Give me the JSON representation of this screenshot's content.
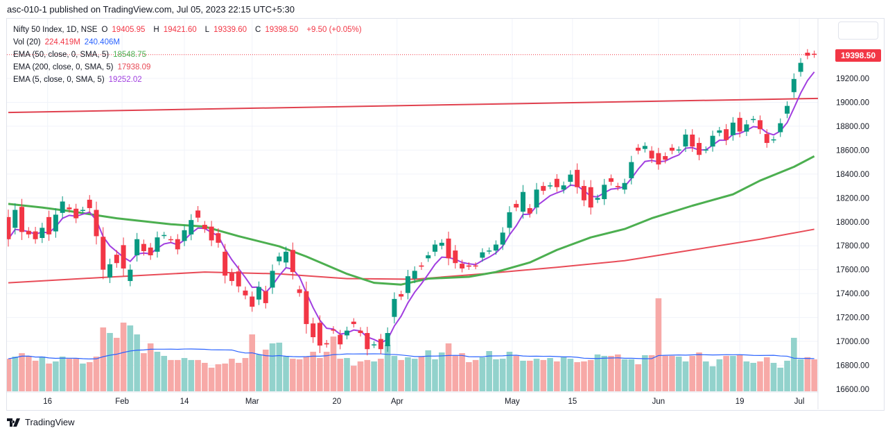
{
  "header": {
    "published": "asc-010-1 published on TradingView.com, Jul 05, 2023 22:15 UTC+5:30"
  },
  "legend": {
    "symbol": "Nifty 50 Index, 1D, NSE",
    "open_label": "O",
    "open": "19405.95",
    "high_label": "H",
    "high": "19421.60",
    "low_label": "L",
    "low": "19339.60",
    "close_label": "C",
    "close": "19398.50",
    "change": "+9.50 (+0.05%)",
    "vol_label": "Vol (20)",
    "vol_value": "224.419M",
    "vol_ma": "240.406M",
    "ema50_label": "EMA (50, close, 0, SMA, 5)",
    "ema50_value": "18548.75",
    "ema200_label": "EMA (200, close, 0, SMA, 5)",
    "ema200_value": "17938.09",
    "ema5_label": "EMA (5, close, 0, SMA, 5)",
    "ema5_value": "19252.02"
  },
  "last_price_tag": "19398.50",
  "brand": "TradingView",
  "colors": {
    "up": "#089981",
    "down": "#f23645",
    "vol_up": "#92d2cc",
    "vol_down": "#f7a9a7",
    "ema50": "#4caf50",
    "ema200": "#e84b57",
    "ema5": "#a13ee0",
    "vol_ma": "#2962ff",
    "trend": "#e0404e"
  },
  "chart_data": {
    "type": "candlestick",
    "title": "Nifty 50 Index, 1D, NSE",
    "ylim": [
      16600,
      19500
    ],
    "y_ticks": [
      "19200.00",
      "19000.00",
      "18800.00",
      "18600.00",
      "18400.00",
      "18200.00",
      "18000.00",
      "17800.00",
      "17600.00",
      "17400.00",
      "17200.00",
      "17000.00",
      "16800.00",
      "16600.00"
    ],
    "x_ticks": [
      {
        "label": "16",
        "index": 5.8
      },
      {
        "label": "Feb",
        "index": 16.8
      },
      {
        "label": "14",
        "index": 26
      },
      {
        "label": "Mar",
        "index": 36
      },
      {
        "label": "20",
        "index": 48.5
      },
      {
        "label": "Apr",
        "index": 57.4
      },
      {
        "label": "May",
        "index": 74.4
      },
      {
        "label": "15",
        "index": 83.3
      },
      {
        "label": "Jun",
        "index": 96
      },
      {
        "label": "19",
        "index": 108
      },
      {
        "label": "Jul",
        "index": 116.8
      }
    ],
    "open_close": [
      [
        18040,
        17855
      ],
      [
        17950,
        18100
      ],
      [
        18125,
        17915
      ],
      [
        17925,
        17895
      ],
      [
        17920,
        17855
      ],
      [
        17865,
        17950
      ],
      [
        18040,
        17895
      ],
      [
        17920,
        18060
      ],
      [
        18075,
        18170
      ],
      [
        18120,
        18105
      ],
      [
        18110,
        18030
      ],
      [
        18095,
        18100
      ],
      [
        18185,
        18115
      ],
      [
        18100,
        17880
      ],
      [
        17875,
        17600
      ],
      [
        17535,
        17645
      ],
      [
        17725,
        17655
      ],
      [
        17805,
        17610
      ],
      [
        17505,
        17600
      ],
      [
        17720,
        17855
      ],
      [
        17815,
        17755
      ],
      [
        17785,
        17720
      ],
      [
        17750,
        17870
      ],
      [
        17885,
        17890
      ],
      [
        17855,
        17850
      ],
      [
        17855,
        17770
      ],
      [
        17840,
        17930
      ],
      [
        17895,
        18015
      ],
      [
        18095,
        18035
      ],
      [
        17975,
        17940
      ],
      [
        17960,
        17845
      ],
      [
        17905,
        17825
      ],
      [
        17750,
        17550
      ],
      [
        17570,
        17505
      ],
      [
        17585,
        17460
      ],
      [
        17425,
        17385
      ],
      [
        17375,
        17290
      ],
      [
        17350,
        17455
      ],
      [
        17420,
        17320
      ],
      [
        17450,
        17590
      ],
      [
        17670,
        17710
      ],
      [
        17660,
        17750
      ],
      [
        17765,
        17580
      ],
      [
        17435,
        17405
      ],
      [
        17420,
        17145
      ],
      [
        17150,
        17035
      ],
      [
        17155,
        16965
      ],
      [
        16985,
        16975
      ],
      [
        17100,
        17090
      ],
      [
        17055,
        16975
      ],
      [
        17050,
        17090
      ],
      [
        17165,
        17145
      ],
      [
        17090,
        17070
      ],
      [
        17070,
        16935
      ],
      [
        16970,
        16975
      ],
      [
        17020,
        16935
      ],
      [
        16960,
        17070
      ],
      [
        17205,
        17355
      ],
      [
        17395,
        17375
      ],
      [
        17405,
        17545
      ],
      [
        17525,
        17590
      ],
      [
        17635,
        17625
      ],
      [
        17695,
        17720
      ],
      [
        17750,
        17810
      ],
      [
        17800,
        17825
      ],
      [
        17860,
        17695
      ],
      [
        17760,
        17655
      ],
      [
        17650,
        17610
      ],
      [
        17635,
        17625
      ],
      [
        17635,
        17630
      ],
      [
        17700,
        17745
      ],
      [
        17755,
        17760
      ],
      [
        17760,
        17810
      ],
      [
        17810,
        17910
      ],
      [
        17950,
        18080
      ],
      [
        18150,
        18120
      ],
      [
        18085,
        18250
      ],
      [
        18115,
        18070
      ],
      [
        18120,
        18270
      ],
      [
        18300,
        18260
      ],
      [
        18300,
        18305
      ],
      [
        18360,
        18290
      ],
      [
        18270,
        18305
      ],
      [
        18335,
        18395
      ],
      [
        18435,
        18290
      ],
      [
        18300,
        18180
      ],
      [
        18290,
        18120
      ],
      [
        18185,
        18200
      ],
      [
        18190,
        18310
      ],
      [
        18365,
        18335
      ],
      [
        18300,
        18290
      ],
      [
        18270,
        18325
      ],
      [
        18365,
        18500
      ],
      [
        18620,
        18595
      ],
      [
        18610,
        18635
      ],
      [
        18595,
        18530
      ],
      [
        18575,
        18480
      ],
      [
        18550,
        18520
      ],
      [
        18620,
        18595
      ],
      [
        18600,
        18605
      ],
      [
        18630,
        18730
      ],
      [
        18730,
        18630
      ],
      [
        18660,
        18560
      ],
      [
        18600,
        18605
      ],
      [
        18630,
        18720
      ],
      [
        18745,
        18765
      ],
      [
        18775,
        18685
      ],
      [
        18725,
        18830
      ],
      [
        18870,
        18755
      ],
      [
        18755,
        18815
      ],
      [
        18855,
        18860
      ],
      [
        18850,
        18775
      ],
      [
        18735,
        18660
      ],
      [
        18685,
        18690
      ],
      [
        18750,
        18825
      ],
      [
        18905,
        18970
      ],
      [
        19085,
        19195
      ],
      [
        19255,
        19330
      ],
      [
        19415,
        19390
      ],
      [
        19405.95,
        19398.5
      ]
    ],
    "volume_millions": [
      229,
      244,
      268,
      249,
      215,
      244,
      195,
      210,
      244,
      229,
      229,
      195,
      205,
      244,
      449,
      410,
      376,
      483,
      463,
      400,
      268,
      337,
      278,
      249,
      220,
      220,
      234,
      220,
      220,
      200,
      166,
      190,
      195,
      229,
      200,
      234,
      400,
      259,
      293,
      337,
      342,
      244,
      229,
      225,
      244,
      278,
      234,
      278,
      385,
      229,
      234,
      180,
      210,
      220,
      210,
      229,
      327,
      249,
      220,
      239,
      229,
      244,
      288,
      225,
      273,
      337,
      249,
      268,
      205,
      220,
      239,
      283,
      225,
      229,
      278,
      249,
      215,
      215,
      229,
      220,
      234,
      210,
      239,
      229,
      205,
      210,
      220,
      259,
      249,
      249,
      259,
      225,
      225,
      190,
      254,
      254,
      654,
      249,
      249,
      244,
      210,
      249,
      273,
      210,
      176,
      225,
      249,
      249,
      254,
      210,
      200,
      210,
      239,
      200,
      166,
      215,
      376,
      225,
      240,
      224.4
    ],
    "ema50": {
      "index": [
        0,
        5,
        9,
        16,
        24,
        29,
        34,
        40,
        44,
        50,
        54,
        58,
        62,
        68,
        72,
        77,
        81,
        86,
        91,
        95,
        101,
        107,
        111,
        116,
        119
      ],
      "value": [
        18150,
        18120,
        18090,
        18030,
        17980,
        17960,
        17880,
        17795,
        17710,
        17565,
        17490,
        17475,
        17525,
        17540,
        17580,
        17660,
        17765,
        17870,
        17940,
        18030,
        18135,
        18230,
        18345,
        18460,
        18548.75
      ]
    },
    "ema200": {
      "index": [
        0,
        14,
        29,
        40,
        50,
        60,
        70,
        81,
        91,
        101,
        111,
        119
      ],
      "value": [
        17490,
        17535,
        17580,
        17565,
        17525,
        17520,
        17565,
        17620,
        17675,
        17765,
        17855,
        17938.09
      ]
    },
    "trendline": {
      "index": [
        0,
        122
      ],
      "value": [
        18915,
        19035
      ]
    }
  }
}
